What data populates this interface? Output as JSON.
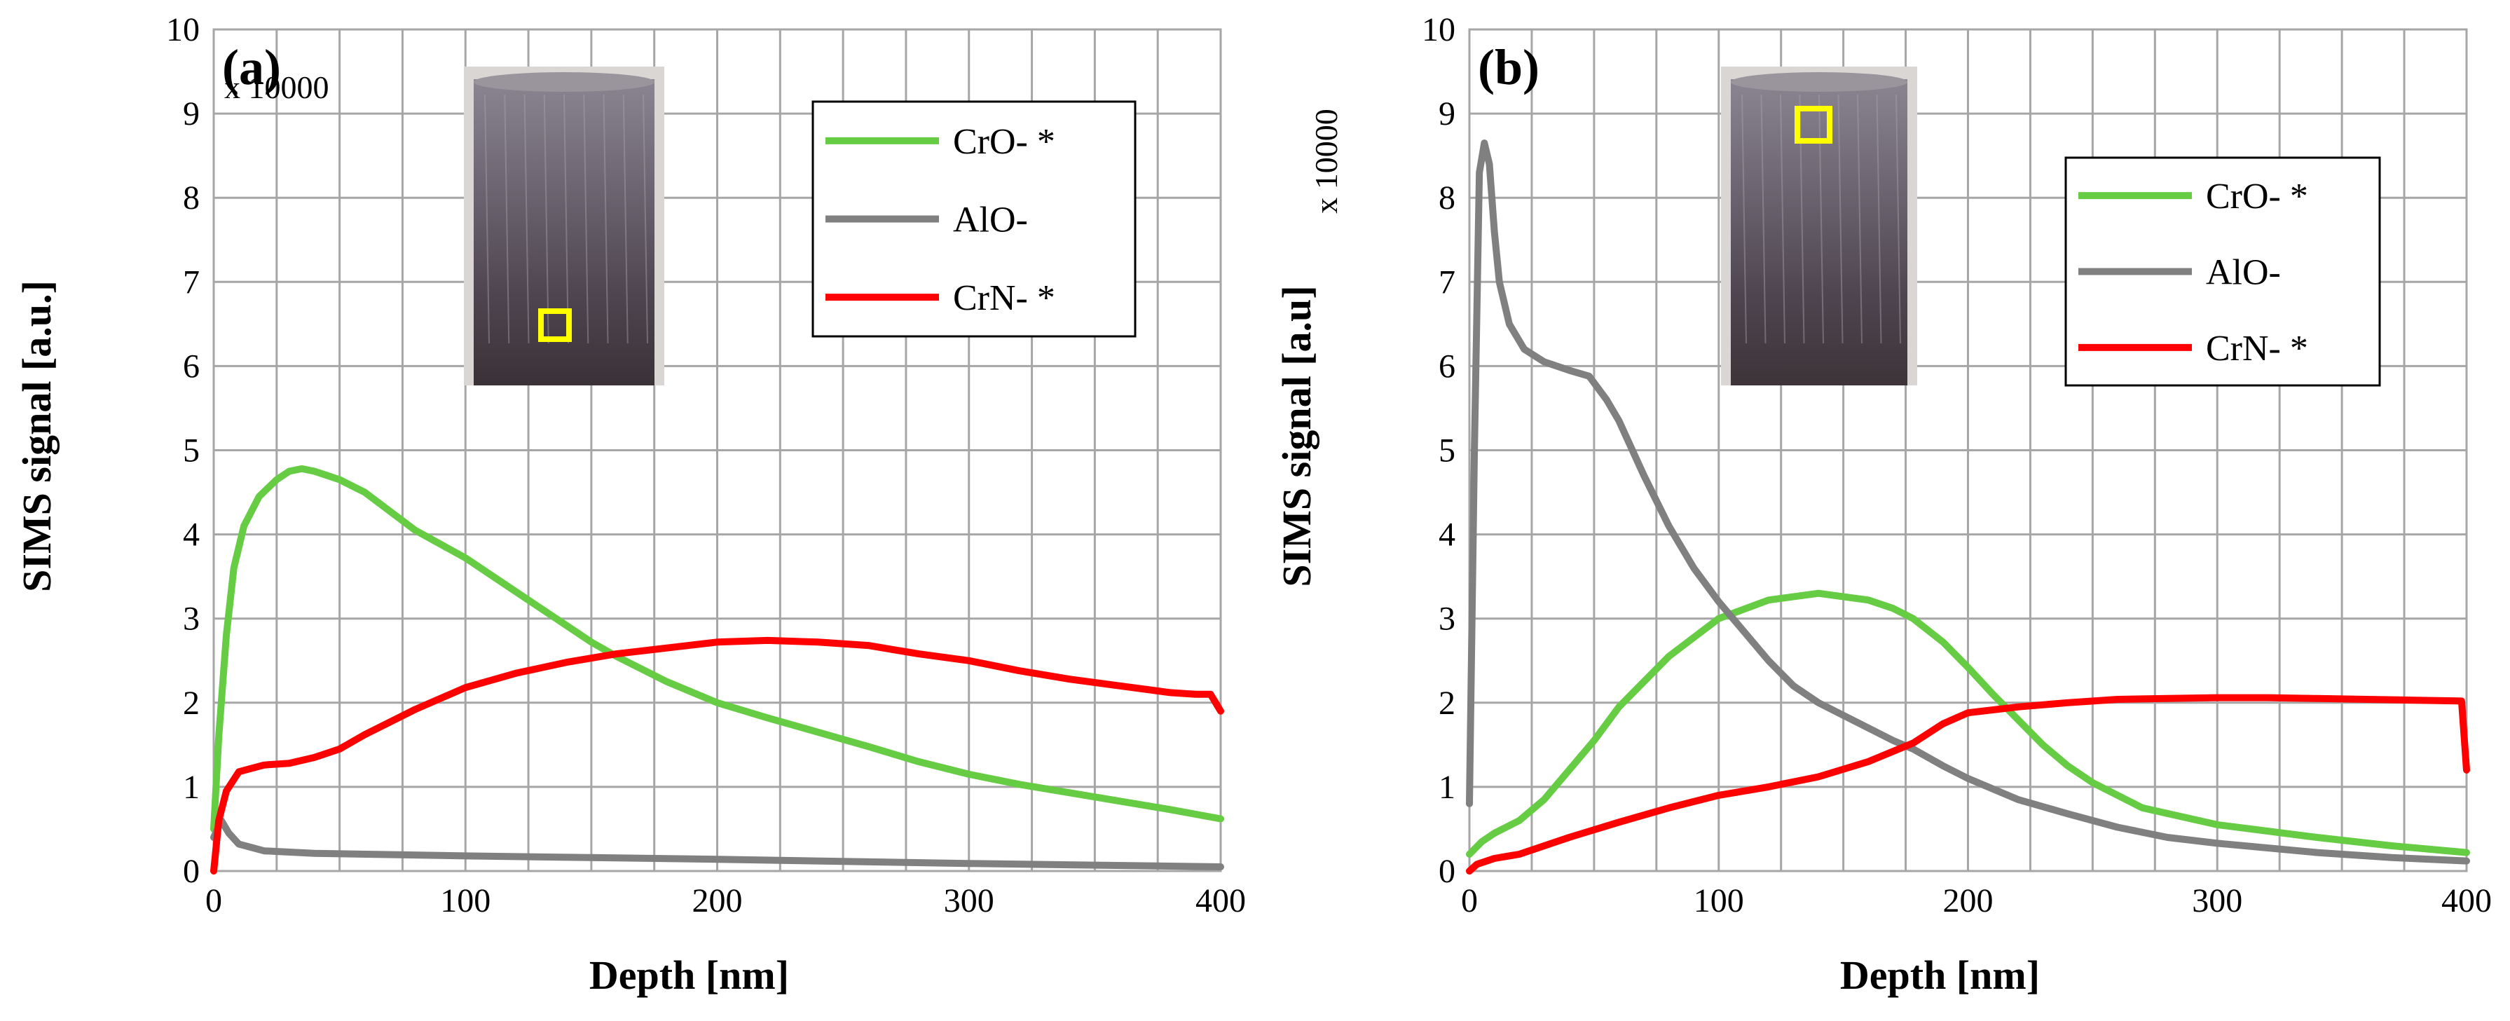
{
  "chart_data": [
    {
      "type": "line",
      "panel_label": "(a)",
      "xlabel": "Depth [nm]",
      "ylabel": "SIMS signal [a.u.]",
      "y_scale_label": "x 10000",
      "xlim": [
        0,
        400
      ],
      "ylim": [
        0,
        10
      ],
      "x_ticks": [
        0,
        100,
        200,
        300,
        400
      ],
      "y_ticks": [
        0,
        1,
        2,
        3,
        4,
        5,
        6,
        7,
        8,
        9,
        10
      ],
      "grid": true,
      "legend_position": "top-right",
      "series": [
        {
          "name": "CrO- *",
          "color": "#66cc44",
          "points": [
            [
              0,
              0.5
            ],
            [
              2,
              1.6
            ],
            [
              5,
              2.8
            ],
            [
              8,
              3.6
            ],
            [
              12,
              4.1
            ],
            [
              18,
              4.45
            ],
            [
              25,
              4.65
            ],
            [
              30,
              4.75
            ],
            [
              35,
              4.78
            ],
            [
              40,
              4.75
            ],
            [
              50,
              4.65
            ],
            [
              60,
              4.5
            ],
            [
              80,
              4.05
            ],
            [
              100,
              3.72
            ],
            [
              120,
              3.32
            ],
            [
              140,
              2.92
            ],
            [
              150,
              2.72
            ],
            [
              160,
              2.55
            ],
            [
              180,
              2.25
            ],
            [
              200,
              2.0
            ],
            [
              220,
              1.82
            ],
            [
              240,
              1.65
            ],
            [
              260,
              1.48
            ],
            [
              280,
              1.3
            ],
            [
              300,
              1.15
            ],
            [
              320,
              1.03
            ],
            [
              340,
              0.93
            ],
            [
              360,
              0.83
            ],
            [
              380,
              0.73
            ],
            [
              400,
              0.62
            ]
          ]
        },
        {
          "name": "AlO-",
          "color": "#808080",
          "points": [
            [
              0,
              0.4
            ],
            [
              3,
              0.6
            ],
            [
              6,
              0.45
            ],
            [
              10,
              0.32
            ],
            [
              20,
              0.24
            ],
            [
              40,
              0.21
            ],
            [
              100,
              0.18
            ],
            [
              200,
              0.14
            ],
            [
              300,
              0.09
            ],
            [
              400,
              0.05
            ]
          ]
        },
        {
          "name": "CrN- *",
          "color": "#ff0000",
          "points": [
            [
              0,
              0.0
            ],
            [
              2,
              0.6
            ],
            [
              5,
              0.95
            ],
            [
              10,
              1.18
            ],
            [
              20,
              1.26
            ],
            [
              30,
              1.28
            ],
            [
              40,
              1.35
            ],
            [
              50,
              1.45
            ],
            [
              60,
              1.62
            ],
            [
              80,
              1.92
            ],
            [
              100,
              2.18
            ],
            [
              120,
              2.35
            ],
            [
              140,
              2.48
            ],
            [
              160,
              2.58
            ],
            [
              180,
              2.65
            ],
            [
              200,
              2.72
            ],
            [
              220,
              2.74
            ],
            [
              240,
              2.72
            ],
            [
              260,
              2.68
            ],
            [
              280,
              2.58
            ],
            [
              300,
              2.5
            ],
            [
              320,
              2.38
            ],
            [
              340,
              2.28
            ],
            [
              360,
              2.2
            ],
            [
              380,
              2.12
            ],
            [
              390,
              2.1
            ],
            [
              396,
              2.1
            ],
            [
              400,
              1.9
            ]
          ]
        }
      ]
    },
    {
      "type": "line",
      "panel_label": "(b)",
      "xlabel": "Depth [nm]",
      "ylabel": "SIMS signal [a.u]",
      "y_scale_label": "x 10000",
      "xlim": [
        0,
        400
      ],
      "ylim": [
        0,
        10
      ],
      "x_ticks": [
        0,
        100,
        200,
        300,
        400
      ],
      "y_ticks": [
        0,
        1,
        2,
        3,
        4,
        5,
        6,
        7,
        8,
        9,
        10
      ],
      "grid": true,
      "legend_position": "top-right",
      "series": [
        {
          "name": "CrO- *",
          "color": "#66cc44",
          "points": [
            [
              0,
              0.2
            ],
            [
              5,
              0.35
            ],
            [
              10,
              0.45
            ],
            [
              20,
              0.6
            ],
            [
              30,
              0.85
            ],
            [
              40,
              1.2
            ],
            [
              50,
              1.55
            ],
            [
              60,
              1.95
            ],
            [
              80,
              2.55
            ],
            [
              100,
              3.0
            ],
            [
              120,
              3.22
            ],
            [
              140,
              3.3
            ],
            [
              160,
              3.22
            ],
            [
              170,
              3.12
            ],
            [
              178,
              3.0
            ],
            [
              190,
              2.72
            ],
            [
              200,
              2.42
            ],
            [
              210,
              2.1
            ],
            [
              220,
              1.8
            ],
            [
              230,
              1.5
            ],
            [
              240,
              1.25
            ],
            [
              250,
              1.05
            ],
            [
              270,
              0.75
            ],
            [
              300,
              0.55
            ],
            [
              340,
              0.4
            ],
            [
              370,
              0.3
            ],
            [
              400,
              0.22
            ]
          ]
        },
        {
          "name": "AlO-",
          "color": "#808080",
          "points": [
            [
              0,
              0.8
            ],
            [
              2,
              5.0
            ],
            [
              4,
              8.3
            ],
            [
              6,
              8.65
            ],
            [
              8,
              8.4
            ],
            [
              10,
              7.6
            ],
            [
              12,
              7.0
            ],
            [
              16,
              6.5
            ],
            [
              22,
              6.2
            ],
            [
              30,
              6.05
            ],
            [
              40,
              5.95
            ],
            [
              48,
              5.88
            ],
            [
              55,
              5.6
            ],
            [
              60,
              5.35
            ],
            [
              70,
              4.7
            ],
            [
              80,
              4.1
            ],
            [
              90,
              3.6
            ],
            [
              100,
              3.2
            ],
            [
              110,
              2.85
            ],
            [
              120,
              2.5
            ],
            [
              130,
              2.2
            ],
            [
              140,
              2.0
            ],
            [
              150,
              1.85
            ],
            [
              160,
              1.7
            ],
            [
              170,
              1.55
            ],
            [
              178,
              1.45
            ],
            [
              190,
              1.25
            ],
            [
              200,
              1.1
            ],
            [
              220,
              0.85
            ],
            [
              240,
              0.68
            ],
            [
              260,
              0.52
            ],
            [
              280,
              0.4
            ],
            [
              300,
              0.33
            ],
            [
              340,
              0.22
            ],
            [
              370,
              0.16
            ],
            [
              400,
              0.12
            ]
          ]
        },
        {
          "name": "CrN- *",
          "color": "#ff0000",
          "points": [
            [
              0,
              0.0
            ],
            [
              3,
              0.08
            ],
            [
              10,
              0.15
            ],
            [
              20,
              0.2
            ],
            [
              40,
              0.4
            ],
            [
              60,
              0.58
            ],
            [
              80,
              0.75
            ],
            [
              100,
              0.9
            ],
            [
              120,
              1.0
            ],
            [
              140,
              1.12
            ],
            [
              160,
              1.3
            ],
            [
              178,
              1.52
            ],
            [
              190,
              1.75
            ],
            [
              200,
              1.88
            ],
            [
              220,
              1.95
            ],
            [
              240,
              2.0
            ],
            [
              260,
              2.04
            ],
            [
              280,
              2.05
            ],
            [
              300,
              2.06
            ],
            [
              320,
              2.06
            ],
            [
              340,
              2.05
            ],
            [
              360,
              2.04
            ],
            [
              380,
              2.03
            ],
            [
              398,
              2.02
            ],
            [
              400,
              1.2
            ]
          ]
        }
      ]
    }
  ]
}
